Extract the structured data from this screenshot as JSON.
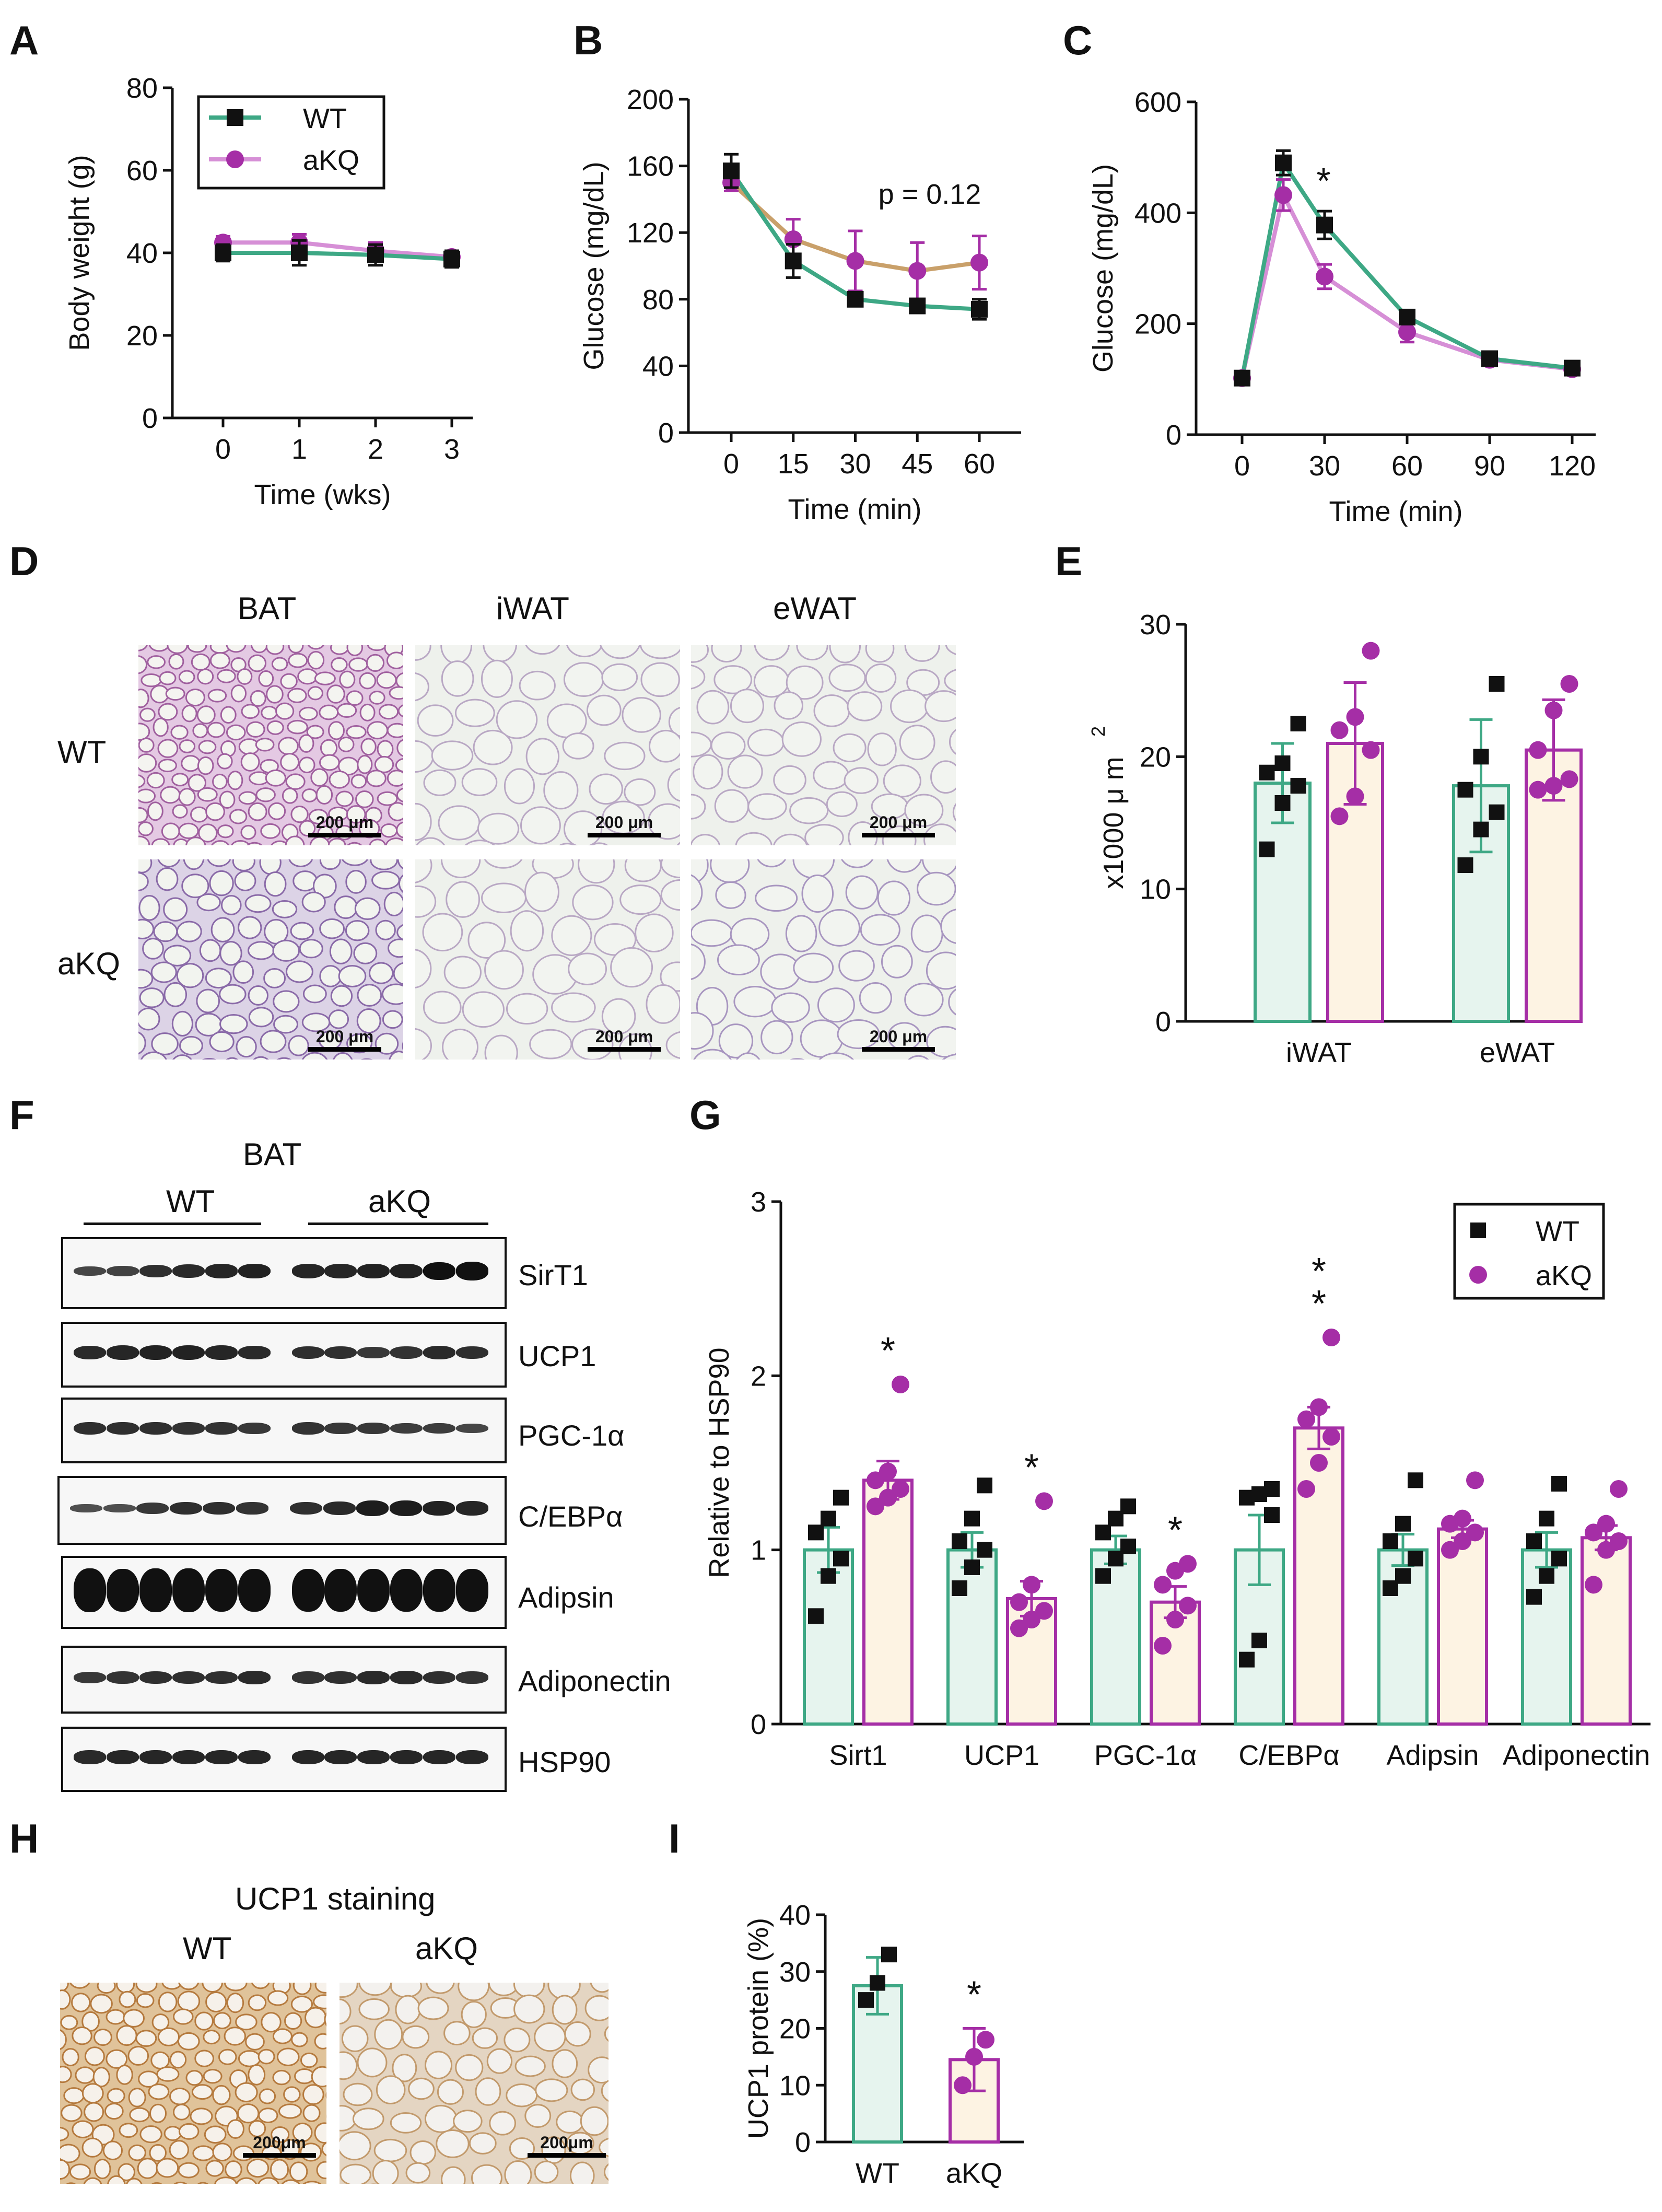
{
  "panels": [
    "A",
    "B",
    "C",
    "D",
    "E",
    "F",
    "G",
    "H",
    "I"
  ],
  "colors": {
    "wt": "#3ea885",
    "akq": "#a52ea6",
    "wt_fill": "#e6f4ee",
    "akq_fill": "#fdf3e3",
    "tan": "#c9a06a",
    "black": "#111111",
    "he_pink": "#cfa8cf",
    "ihc_brown": "#b57a3e"
  },
  "chart_data": [
    {
      "panel": "A",
      "type": "line",
      "x": [
        0,
        1,
        2,
        3
      ],
      "series": [
        {
          "name": "WT",
          "values": [
            40,
            40,
            39.5,
            38.5
          ],
          "errors": [
            2,
            3,
            2.5,
            2
          ]
        },
        {
          "name": "aKQ",
          "values": [
            42.5,
            42.5,
            40.5,
            39
          ],
          "errors": [
            1.5,
            2,
            2,
            1.5
          ]
        }
      ],
      "xlabel": "Time (wks)",
      "ylabel": "Body weight (g)",
      "ylim": [
        0,
        80
      ],
      "yticks": [
        0,
        20,
        40,
        60,
        80
      ],
      "xticks": [
        0,
        1,
        2,
        3
      ],
      "legend": [
        "WT",
        "aKQ"
      ],
      "legend_position": "top-left"
    },
    {
      "panel": "B",
      "type": "line",
      "x": [
        0,
        15,
        30,
        45,
        60
      ],
      "series": [
        {
          "name": "WT",
          "values": [
            157,
            103,
            80,
            76,
            74
          ],
          "errors": [
            10,
            10,
            4,
            4,
            6
          ]
        },
        {
          "name": "aKQ",
          "values": [
            150,
            116,
            103,
            97,
            102
          ],
          "errors": [
            5,
            12,
            18,
            17,
            16
          ]
        }
      ],
      "xlabel": "Time (min)",
      "ylabel": "Glucose (mg/dL)",
      "ylim": [
        0,
        200
      ],
      "yticks": [
        0,
        40,
        80,
        120,
        160,
        200
      ],
      "xticks": [
        0,
        15,
        30,
        45,
        60
      ],
      "annotation": "p = 0.12"
    },
    {
      "panel": "C",
      "type": "line",
      "x": [
        0,
        15,
        30,
        60,
        90,
        120
      ],
      "series": [
        {
          "name": "WT",
          "values": [
            102,
            490,
            378,
            212,
            137,
            120
          ],
          "errors": [
            8,
            22,
            25,
            12,
            8,
            8
          ]
        },
        {
          "name": "aKQ",
          "values": [
            102,
            432,
            285,
            185,
            135,
            118
          ],
          "errors": [
            8,
            28,
            22,
            18,
            8,
            6
          ]
        }
      ],
      "xlabel": "Time (min)",
      "ylabel": "Glucose (mg/dL)",
      "ylim": [
        0,
        600
      ],
      "yticks": [
        0,
        200,
        400,
        600
      ],
      "xticks": [
        0,
        30,
        60,
        90,
        120
      ],
      "significance": [
        {
          "x": 30,
          "label": "*"
        }
      ]
    },
    {
      "panel": "E",
      "type": "bar",
      "categories": [
        "iWAT",
        "eWAT"
      ],
      "series": [
        {
          "name": "WT",
          "values": [
            18,
            17.8
          ],
          "errors": [
            3,
            5
          ],
          "points": [
            [
              13,
              16.5,
              17.8,
              18.8,
              19.5,
              22.5
            ],
            [
              11.8,
              14.5,
              15.8,
              17.5,
              20,
              25.5
            ]
          ]
        },
        {
          "name": "aKQ",
          "values": [
            21,
            20.5
          ],
          "errors": [
            4.6,
            3.8
          ],
          "points": [
            [
              15.5,
              17,
              20.5,
              22,
              23,
              28
            ],
            [
              17.5,
              17.8,
              18.3,
              20.5,
              23.5,
              25.5
            ]
          ]
        }
      ],
      "xlabel": "",
      "ylabel": "x1000 μ m",
      "ylabel_superscript": "2",
      "ylim": [
        0,
        30
      ],
      "yticks": [
        0,
        10,
        20,
        30
      ]
    },
    {
      "panel": "G",
      "type": "bar",
      "categories": [
        "Sirt1",
        "UCP1",
        "PGC-1α",
        "C/EBPα",
        "Adipsin",
        "Adiponectin"
      ],
      "series": [
        {
          "name": "WT",
          "values": [
            1.0,
            1.0,
            1.0,
            1.0,
            1.0,
            1.0
          ],
          "errors": [
            0.13,
            0.1,
            0.08,
            0.2,
            0.09,
            0.1
          ],
          "points": [
            [
              0.62,
              0.85,
              0.95,
              1.1,
              1.18,
              1.3
            ],
            [
              0.78,
              0.9,
              1.0,
              1.05,
              1.18,
              1.37
            ],
            [
              0.85,
              0.95,
              1.02,
              1.1,
              1.18,
              1.25
            ],
            [
              0.37,
              0.48,
              1.2,
              1.3,
              1.32,
              1.35
            ],
            [
              0.78,
              0.85,
              0.95,
              1.05,
              1.15,
              1.4
            ],
            [
              0.73,
              0.85,
              0.95,
              1.05,
              1.18,
              1.38
            ]
          ]
        },
        {
          "name": "aKQ",
          "values": [
            1.4,
            0.72,
            0.7,
            1.7,
            1.12,
            1.07
          ],
          "errors": [
            0.11,
            0.1,
            0.09,
            0.12,
            0.05,
            0.07
          ],
          "points": [
            [
              1.25,
              1.3,
              1.35,
              1.4,
              1.45,
              1.95
            ],
            [
              0.55,
              0.6,
              0.65,
              0.7,
              0.8,
              1.28
            ],
            [
              0.45,
              0.6,
              0.68,
              0.8,
              0.88,
              0.92
            ],
            [
              1.35,
              1.5,
              1.65,
              1.75,
              1.82,
              2.22
            ],
            [
              1.0,
              1.05,
              1.1,
              1.15,
              1.18,
              1.4
            ],
            [
              0.8,
              1.0,
              1.05,
              1.1,
              1.15,
              1.35
            ]
          ]
        }
      ],
      "xlabel": "",
      "ylabel": "Relative to HSP90",
      "ylim": [
        0,
        3
      ],
      "yticks": [
        0,
        1,
        2,
        3
      ],
      "significance": [
        "*",
        "*",
        "*",
        "**",
        "",
        ""
      ],
      "legend": [
        "WT",
        "aKQ"
      ],
      "legend_position": "top-right"
    },
    {
      "panel": "I",
      "type": "bar",
      "categories": [
        "WT",
        "aKQ"
      ],
      "series": [
        {
          "name": "UCP1 protein",
          "values": [
            27.5,
            14.5
          ],
          "errors": [
            5,
            5.5
          ],
          "points": [
            [
              25,
              28,
              33
            ],
            [
              10,
              15,
              18
            ]
          ]
        }
      ],
      "xlabel": "",
      "ylabel": "UCP1 protein  (%)",
      "ylim": [
        0,
        40
      ],
      "yticks": [
        0,
        10,
        20,
        30,
        40
      ],
      "significance": [
        "",
        "*"
      ]
    }
  ],
  "panel_d": {
    "columns": [
      "BAT",
      "iWAT",
      "eWAT"
    ],
    "rows": [
      "WT",
      "aKQ"
    ],
    "scalebar": "200 μm"
  },
  "panel_f": {
    "title": "BAT",
    "groups": [
      "WT",
      "aKQ"
    ],
    "blots": [
      "SirT1",
      "UCP1",
      "PGC-1α",
      "C/EBPα",
      "Adipsin",
      "Adiponectin",
      "HSP90"
    ]
  },
  "panel_h": {
    "title": "UCP1 staining",
    "columns": [
      "WT",
      "aKQ"
    ],
    "scalebar": "200μm"
  }
}
